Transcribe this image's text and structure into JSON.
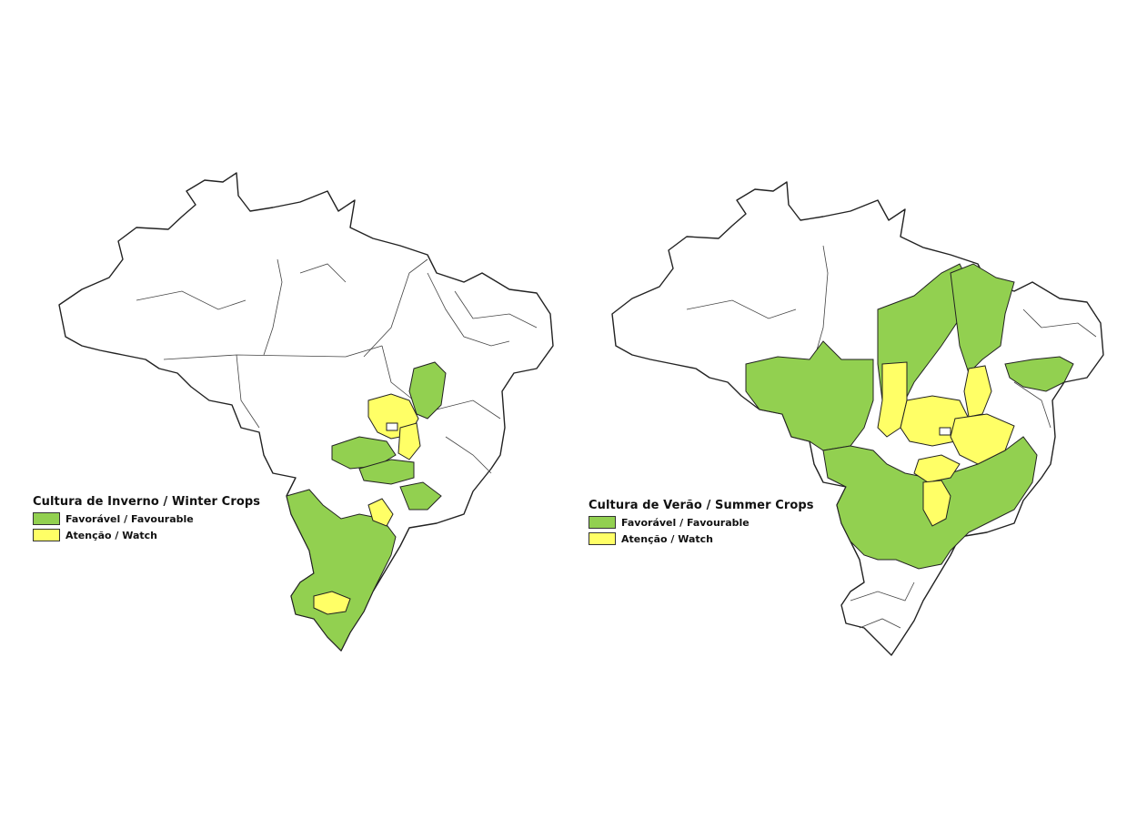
{
  "maps": [
    {
      "title": "Cultura de Inverno / Winter Crops",
      "legend": [
        {
          "label": "Favorável / Favourable",
          "color": "#92d050"
        },
        {
          "label": "Atenção / Watch",
          "color": "#ffff66"
        }
      ]
    },
    {
      "title": "Cultura de Verão / Summer Crops",
      "legend": [
        {
          "label": "Favorável / Favourable",
          "color": "#92d050"
        },
        {
          "label": "Atenção / Watch",
          "color": "#ffff66"
        }
      ]
    }
  ],
  "colors": {
    "favourable": "#92d050",
    "watch": "#ffff66",
    "unclassified": "#ffffff",
    "border": "#222222"
  }
}
